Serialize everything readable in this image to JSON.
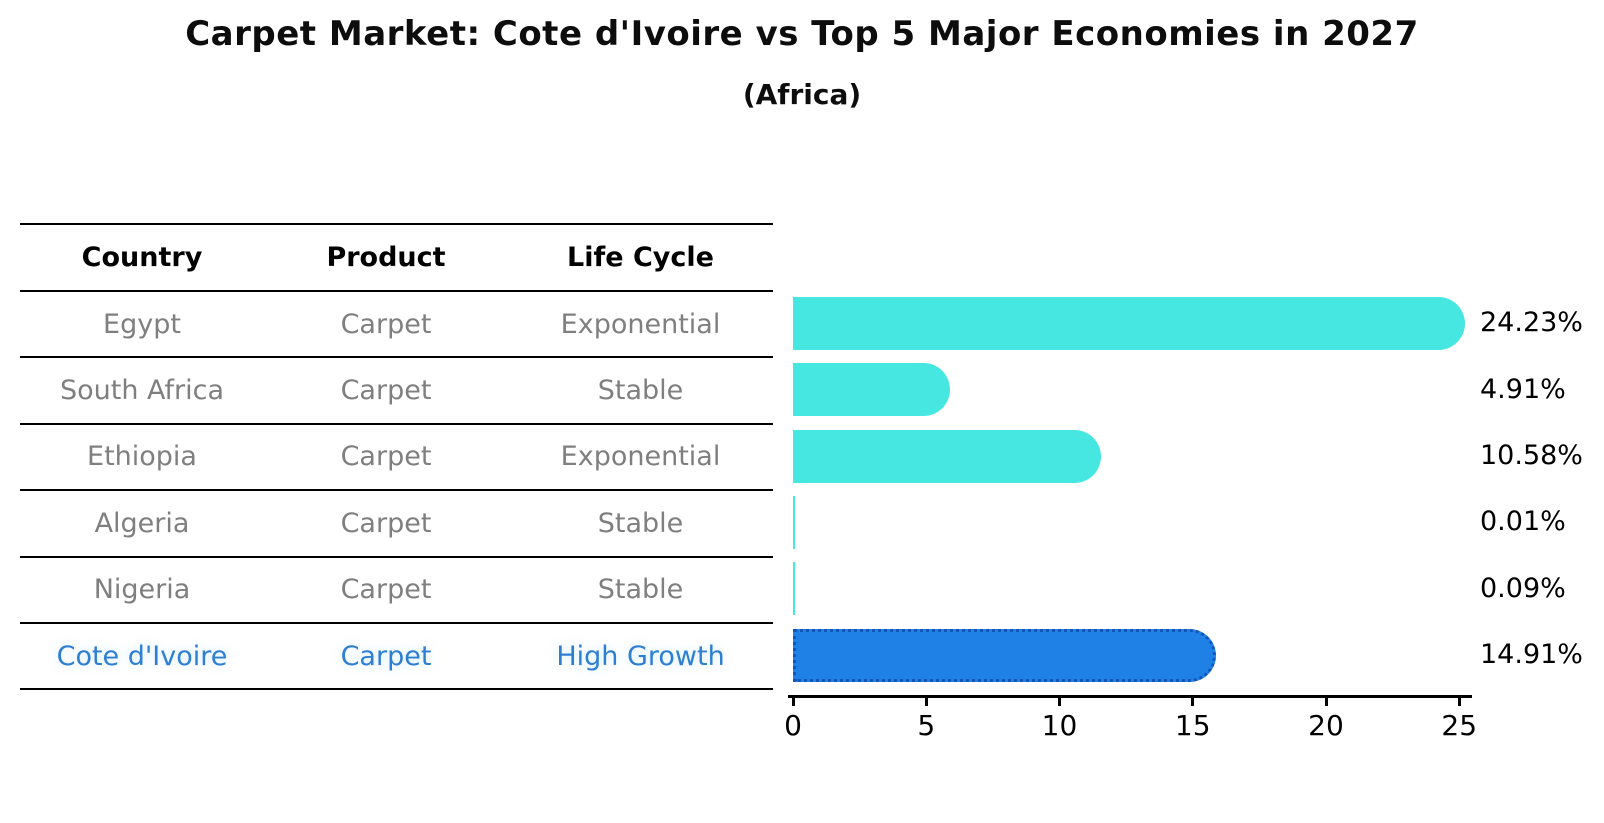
{
  "header": {
    "title": "Carpet Market: Cote d'Ivoire vs Top 5 Major Economies in 2027",
    "subtitle": "(Africa)"
  },
  "table": {
    "headers": [
      "Country",
      "Product",
      "Life Cycle"
    ],
    "rows": [
      {
        "country": "Egypt",
        "product": "Carpet",
        "life_cycle": "Exponential",
        "highlight": false
      },
      {
        "country": "South Africa",
        "product": "Carpet",
        "life_cycle": "Stable",
        "highlight": false
      },
      {
        "country": "Ethiopia",
        "product": "Carpet",
        "life_cycle": "Exponential",
        "highlight": false
      },
      {
        "country": "Algeria",
        "product": "Carpet",
        "life_cycle": "Stable",
        "highlight": false
      },
      {
        "country": "Nigeria",
        "product": "Carpet",
        "life_cycle": "Stable",
        "highlight": false
      },
      {
        "country": "Cote d'Ivoire",
        "product": "Carpet",
        "life_cycle": "High Growth",
        "highlight": true
      }
    ]
  },
  "chart_data": {
    "type": "bar",
    "orientation": "horizontal",
    "title": "Carpet Market: Cote d'Ivoire vs Top 5 Major Economies in 2027",
    "subtitle": "(Africa)",
    "categories": [
      "Egypt",
      "South Africa",
      "Ethiopia",
      "Algeria",
      "Nigeria",
      "Cote d'Ivoire"
    ],
    "values": [
      24.23,
      4.91,
      10.58,
      0.01,
      0.09,
      14.91
    ],
    "value_labels": [
      "24.23%",
      "4.91%",
      "10.58%",
      "0.01%",
      "0.09%",
      "14.91%"
    ],
    "unit": "%",
    "x_ticks": [
      0,
      5,
      10,
      15,
      20,
      25
    ],
    "xlim": [
      0,
      25
    ],
    "grid": false,
    "legend": "none",
    "highlight_category": "Cote d'Ivoire",
    "colors": {
      "bar": "#46E6E1",
      "highlight_bar": "#1F80E5",
      "highlight_border": "#1257B8",
      "highlight_text": "#2E7FD2",
      "table_text": "#7f7f7f",
      "axis": "#000000"
    }
  }
}
